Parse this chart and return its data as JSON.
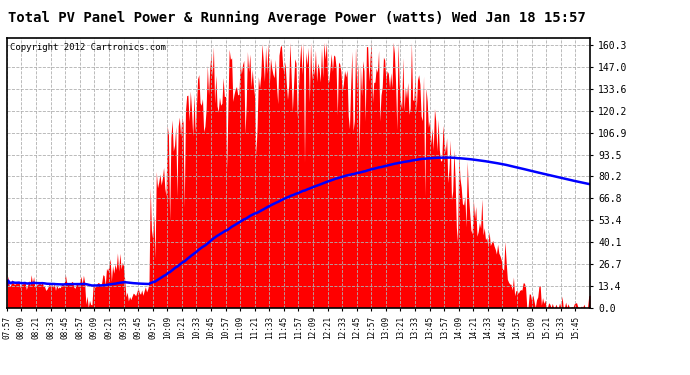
{
  "title": "Total PV Panel Power & Running Average Power (watts) Wed Jan 18 15:57",
  "copyright": "Copyright 2012 Cartronics.com",
  "yticks": [
    0.0,
    13.4,
    26.7,
    40.1,
    53.4,
    66.8,
    80.2,
    93.5,
    106.9,
    120.2,
    133.6,
    147.0,
    160.3
  ],
  "ymax": 165,
  "ymin": 0,
  "bar_color": "#FF0000",
  "avg_color": "#0000FF",
  "background_color": "#FFFFFF",
  "grid_color": "#B0B0B0",
  "title_fontsize": 10,
  "copyright_fontsize": 6.5
}
